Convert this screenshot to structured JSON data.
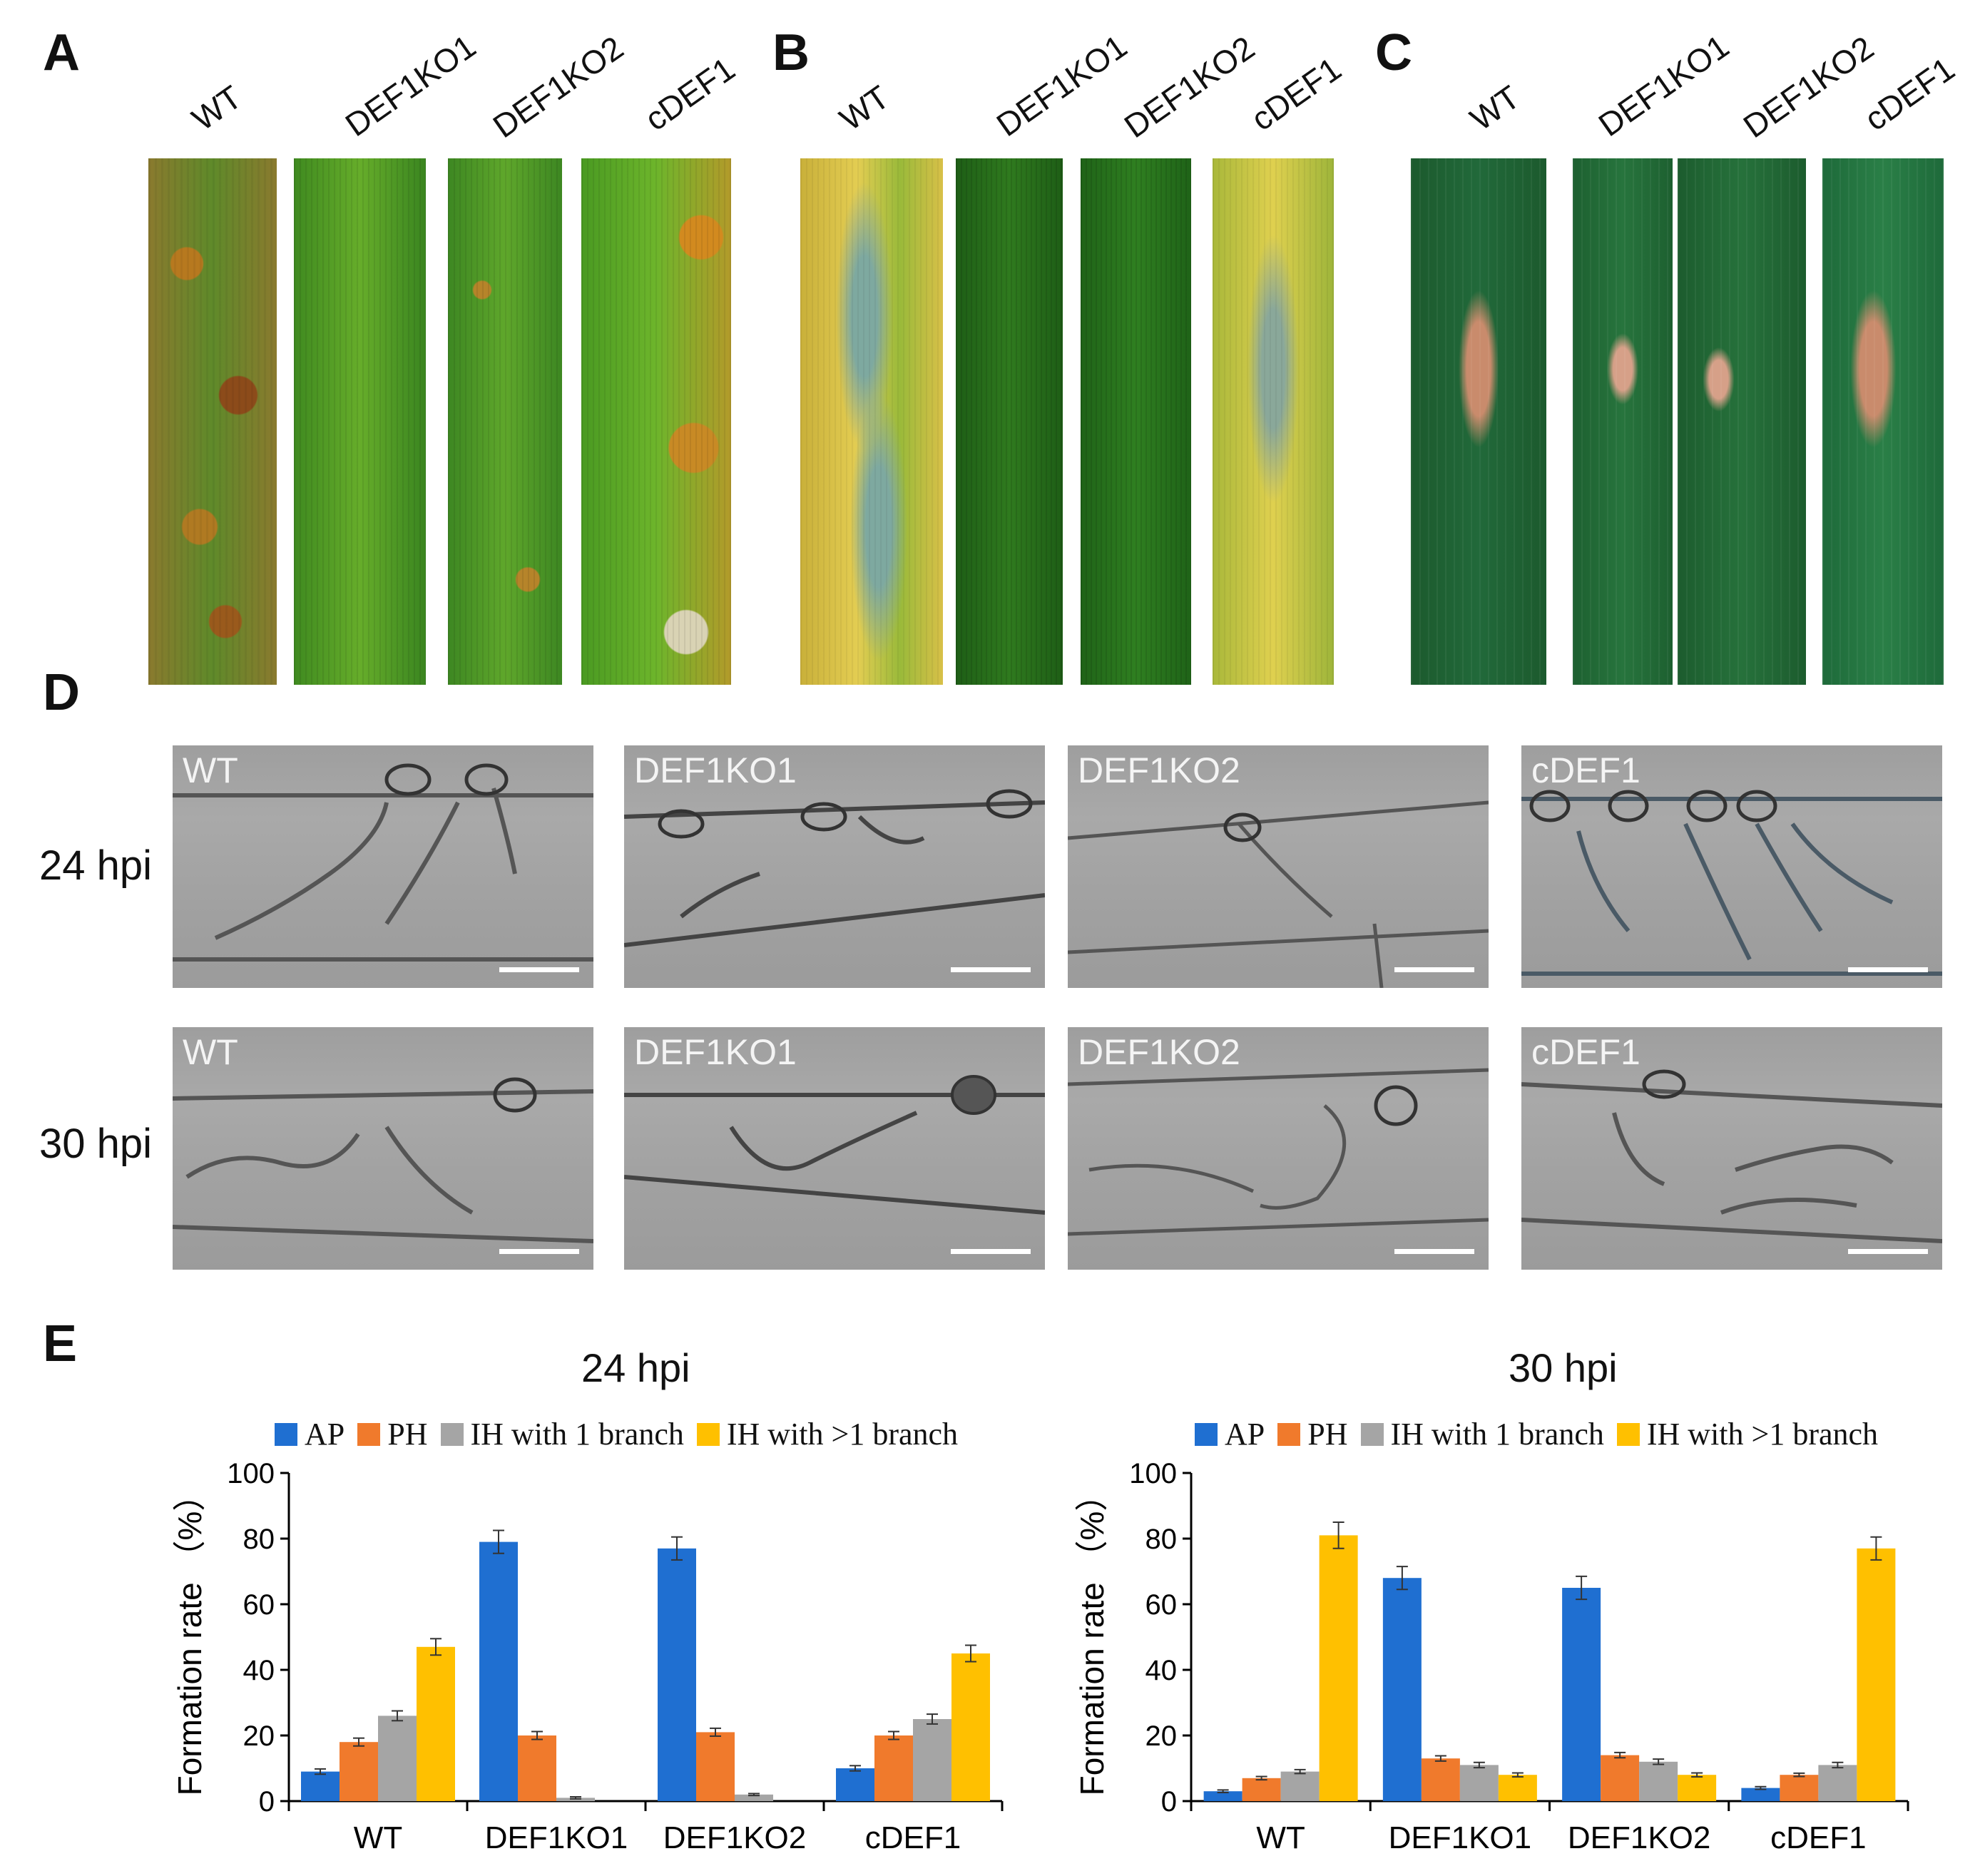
{
  "panels": {
    "A": {
      "letter": "A",
      "labels": [
        "WT",
        "DEF1KO1",
        "DEF1KO2",
        "cDEF1"
      ]
    },
    "B": {
      "letter": "B",
      "labels": [
        "WT",
        "DEF1KO1",
        "DEF1KO2",
        "cDEF1"
      ]
    },
    "C": {
      "letter": "C",
      "labels": [
        "WT",
        "DEF1KO1",
        "DEF1KO2",
        "cDEF1"
      ]
    },
    "D": {
      "letter": "D",
      "rows": [
        "24 hpi",
        "30 hpi"
      ],
      "labels": [
        "WT",
        "DEF1KO1",
        "DEF1KO2",
        "cDEF1"
      ]
    },
    "E": {
      "letter": "E"
    }
  },
  "colors": {
    "AP": "#1f6fd1",
    "PH": "#f07a2c",
    "IH1": "#a5a5a5",
    "IH2": "#ffc000"
  },
  "chart_data": [
    {
      "type": "bar",
      "title": "24 hpi",
      "categories": [
        "WT",
        "DEF1KO1",
        "DEF1KO2",
        "cDEF1"
      ],
      "series": [
        {
          "name": "AP",
          "values": [
            9,
            79,
            77,
            10
          ],
          "errors": [
            0.8,
            3.5,
            3.5,
            0.8
          ]
        },
        {
          "name": "PH",
          "values": [
            18,
            20,
            21,
            20
          ],
          "errors": [
            1.2,
            1.2,
            1.2,
            1.2
          ]
        },
        {
          "name": "IH with 1 branch",
          "values": [
            26,
            1,
            2,
            25
          ],
          "errors": [
            1.5,
            0.3,
            0.3,
            1.5
          ]
        },
        {
          "name": "IH with >1 branch",
          "values": [
            47,
            0,
            0,
            45
          ],
          "errors": [
            2.5,
            0,
            0,
            2.5
          ]
        }
      ],
      "ylabel": "Formation rate （%）",
      "ylim": [
        0,
        100
      ],
      "yticks": [
        0,
        20,
        40,
        60,
        80,
        100
      ],
      "legend": "top"
    },
    {
      "type": "bar",
      "title": "30 hpi",
      "categories": [
        "WT",
        "DEF1KO1",
        "DEF1KO2",
        "cDEF1"
      ],
      "series": [
        {
          "name": "AP",
          "values": [
            3,
            68,
            65,
            4
          ],
          "errors": [
            0.4,
            3.5,
            3.5,
            0.4
          ]
        },
        {
          "name": "PH",
          "values": [
            7,
            13,
            14,
            8
          ],
          "errors": [
            0.5,
            0.8,
            0.8,
            0.5
          ]
        },
        {
          "name": "IH with 1 branch",
          "values": [
            9,
            11,
            12,
            11
          ],
          "errors": [
            0.6,
            0.8,
            0.8,
            0.8
          ]
        },
        {
          "name": "IH with >1 branch",
          "values": [
            81,
            8,
            8,
            77
          ],
          "errors": [
            4.0,
            0.6,
            0.6,
            3.5
          ]
        }
      ],
      "ylabel": "Formation rate （%）",
      "ylim": [
        0,
        100
      ],
      "yticks": [
        0,
        20,
        40,
        60,
        80,
        100
      ],
      "legend": "top"
    }
  ]
}
